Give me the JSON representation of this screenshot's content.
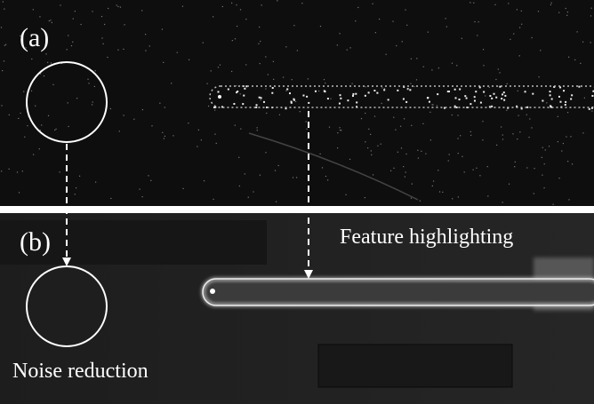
{
  "panels": [
    {
      "label": "(a)"
    },
    {
      "label": "(b)"
    }
  ],
  "annotations": {
    "feature": "Feature highlighting",
    "noise": "Noise reduction"
  }
}
